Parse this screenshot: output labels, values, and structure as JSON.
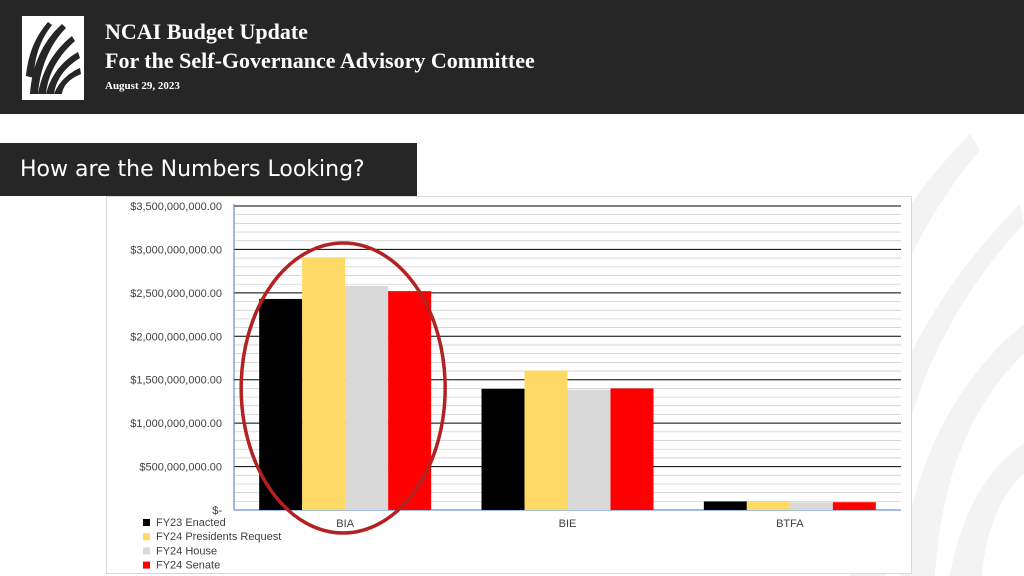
{
  "header": {
    "title_line1": "NCAI Budget Update",
    "title_line2": "For the Self-Governance Advisory Committee",
    "date": "August 29, 2023",
    "logo_icon": "ncai-headdress-logo-icon"
  },
  "section": {
    "title": "How are the Numbers Looking?"
  },
  "chart_data": {
    "type": "bar",
    "categories": [
      "BIA",
      "BIE",
      "BTFA"
    ],
    "series": [
      {
        "name": "FY23 Enacted",
        "color": "#000000",
        "values": [
          2430000000,
          1395000000,
          98000000
        ]
      },
      {
        "name": "FY24 Presidents Request",
        "color": "#FFD966",
        "values": [
          2910000000,
          1605000000,
          95000000
        ]
      },
      {
        "name": "FY24 House",
        "color": "#D9D9D9",
        "values": [
          2580000000,
          1385000000,
          88000000
        ]
      },
      {
        "name": "FY24 Senate",
        "color": "#FF0000",
        "values": [
          2520000000,
          1400000000,
          90000000
        ]
      }
    ],
    "ylim": [
      0,
      3500000000
    ],
    "yticks": [
      {
        "value": 0,
        "label": "$-"
      },
      {
        "value": 500000000,
        "label": "$500,000,000.00"
      },
      {
        "value": 1000000000,
        "label": "$1,000,000,000.00"
      },
      {
        "value": 1500000000,
        "label": "$1,500,000,000.00"
      },
      {
        "value": 2000000000,
        "label": "$2,000,000,000.00"
      },
      {
        "value": 2500000000,
        "label": "$2,500,000,000.00"
      },
      {
        "value": 3000000000,
        "label": "$3,000,000,000.00"
      },
      {
        "value": 3500000000,
        "label": "$3,500,000,000.00"
      }
    ],
    "minor_gridline_step": 100000000,
    "grid": true,
    "legend_placement": "bottom-left",
    "annotation": {
      "type": "ellipse-highlight",
      "category": "BIA",
      "color": "#B22222"
    }
  }
}
